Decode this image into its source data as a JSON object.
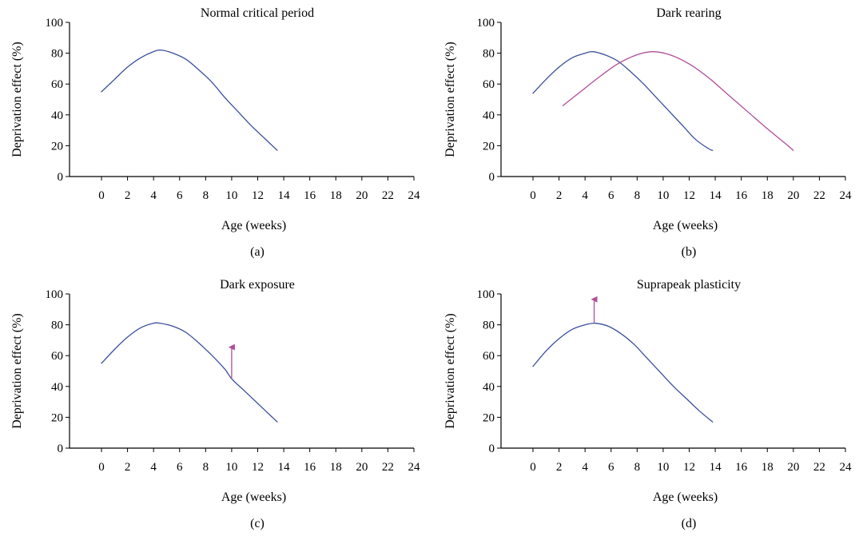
{
  "colors": {
    "normal": "#3b4f9a",
    "shifted": "#b04d9a",
    "axis": "#000000"
  },
  "chart_data": [
    {
      "type": "line",
      "title": "Normal critical period",
      "caption": "(a)",
      "xlabel": "Age (weeks)",
      "ylabel": "Deprivation effect (%)",
      "xlim": [
        0,
        24
      ],
      "ylim": [
        0,
        100
      ],
      "xticks": [
        0,
        2,
        4,
        6,
        8,
        10,
        12,
        14,
        16,
        18,
        20,
        22,
        24
      ],
      "yticks": [
        0,
        20,
        40,
        60,
        80,
        100
      ],
      "grid": false,
      "series": [
        {
          "color": "#3b4f9a",
          "x": [
            0,
            1,
            2,
            3,
            4,
            4.6,
            5.5,
            6.5,
            7.5,
            8.5,
            9.5,
            10.5,
            11.5,
            12.5,
            13.5
          ],
          "y": [
            55,
            63,
            71,
            77,
            81,
            82,
            80,
            76,
            69,
            61,
            51,
            42,
            33,
            25,
            17
          ]
        }
      ],
      "annotations": []
    },
    {
      "type": "line",
      "title": "Dark rearing",
      "caption": "(b)",
      "xlabel": "Age (weeks)",
      "ylabel": "Deprivation effect (%)",
      "xlim": [
        0,
        24
      ],
      "ylim": [
        0,
        100
      ],
      "xticks": [
        0,
        2,
        4,
        6,
        8,
        10,
        12,
        14,
        16,
        18,
        20,
        22,
        24
      ],
      "yticks": [
        0,
        20,
        40,
        60,
        80,
        100
      ],
      "grid": false,
      "series": [
        {
          "color": "#3b4f9a",
          "x": [
            0,
            1,
            2,
            3,
            4,
            4.6,
            5.5,
            6.5,
            7.5,
            8.5,
            9.5,
            10.5,
            11.5,
            12.5,
            13.5,
            13.8
          ],
          "y": [
            54,
            63,
            71,
            77,
            80,
            81,
            79,
            75,
            68,
            60,
            51,
            42,
            33,
            24,
            18,
            17
          ]
        },
        {
          "color": "#b04d9a",
          "x": [
            2.3,
            3.5,
            5,
            6.5,
            8,
            9.2,
            10.5,
            12,
            13.5,
            15,
            16.5,
            18,
            19.3,
            20
          ],
          "y": [
            46,
            54,
            64,
            73,
            79,
            81,
            79,
            73,
            64,
            53,
            42,
            31,
            22,
            17
          ]
        }
      ],
      "annotations": []
    },
    {
      "type": "line",
      "title": "Dark exposure",
      "caption": "(c)",
      "xlabel": "Age (weeks)",
      "ylabel": "Deprivation effect (%)",
      "xlim": [
        0,
        24
      ],
      "ylim": [
        0,
        100
      ],
      "xticks": [
        0,
        2,
        4,
        6,
        8,
        10,
        12,
        14,
        16,
        18,
        20,
        22,
        24
      ],
      "yticks": [
        0,
        20,
        40,
        60,
        80,
        100
      ],
      "grid": false,
      "series": [
        {
          "color": "#3b4f9a",
          "x": [
            0,
            1,
            2,
            3,
            4,
            4.5,
            5.5,
            6.5,
            7.5,
            8.5,
            9.5,
            10,
            11,
            12,
            13,
            13.5
          ],
          "y": [
            55,
            64,
            72,
            78,
            81,
            81,
            79,
            75,
            68,
            60,
            51,
            45,
            37,
            29,
            21,
            17
          ]
        }
      ],
      "annotations": [
        {
          "type": "arrow",
          "color": "#b04d9a",
          "x": 10,
          "y_from": 45,
          "y_to": 66
        }
      ]
    },
    {
      "type": "line",
      "title": "Suprapeak plasticity",
      "caption": "(d)",
      "xlabel": "Age (weeks)",
      "ylabel": "Deprivation effect (%)",
      "xlim": [
        0,
        24
      ],
      "ylim": [
        0,
        100
      ],
      "xticks": [
        0,
        2,
        4,
        6,
        8,
        10,
        12,
        14,
        16,
        18,
        20,
        22,
        24
      ],
      "yticks": [
        0,
        20,
        40,
        60,
        80,
        100
      ],
      "grid": false,
      "series": [
        {
          "color": "#3b4f9a",
          "x": [
            0,
            1,
            2,
            3,
            4,
            4.8,
            5.8,
            6.8,
            7.8,
            8.8,
            9.8,
            10.8,
            11.8,
            12.8,
            13.8
          ],
          "y": [
            53,
            63,
            71,
            77,
            80,
            81,
            79,
            74,
            67,
            58,
            49,
            40,
            32,
            24,
            17
          ]
        }
      ],
      "annotations": [
        {
          "type": "arrow",
          "color": "#b04d9a",
          "x": 4.7,
          "y_from": 81,
          "y_to": 97
        }
      ]
    }
  ]
}
